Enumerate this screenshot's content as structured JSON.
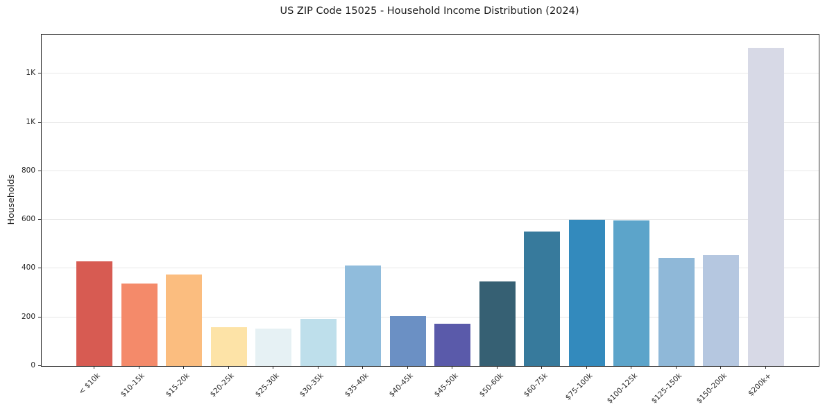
{
  "chart_data": {
    "type": "bar",
    "title": "US ZIP Code 15025 - Household Income Distribution (2024)",
    "xlabel": "",
    "ylabel": "Households",
    "categories": [
      "< $10k",
      "$10-15k",
      "$15-20k",
      "$20-25k",
      "$25-30k",
      "$30-35k",
      "$35-40k",
      "$40-45k",
      "$45-50k",
      "$50-60k",
      "$60-75k",
      "$75-100k",
      "$100-125k",
      "$125-150k",
      "$150-200k",
      "$200k+"
    ],
    "values": [
      431,
      340,
      375,
      159,
      154,
      193,
      412,
      204,
      173,
      346,
      551,
      600,
      597,
      443,
      454,
      1305
    ],
    "bar_colors": [
      "#d75b52",
      "#f48a6a",
      "#fbbd7f",
      "#fde3a7",
      "#e6f1f4",
      "#bedfeb",
      "#90bcdc",
      "#6b90c4",
      "#5a5aaa",
      "#366073",
      "#377a9c",
      "#338abd",
      "#5ca4ca",
      "#8fb8d8",
      "#b5c7e0",
      "#d7d9e6"
    ],
    "ylim": [
      0,
      1360
    ],
    "y_ticks": [
      {
        "value": 0,
        "label": "0"
      },
      {
        "value": 200,
        "label": "200"
      },
      {
        "value": 400,
        "label": "400"
      },
      {
        "value": 600,
        "label": "600"
      },
      {
        "value": 800,
        "label": "800"
      },
      {
        "value": 1000,
        "label": "1K"
      },
      {
        "value": 1200,
        "label": "1K"
      }
    ],
    "grid": "horizontal",
    "legend": "none",
    "x_tick_rotation": 45,
    "background": "#ffffff",
    "spine_color": "#2e2e2e",
    "grid_color": "#e7e7e7"
  }
}
